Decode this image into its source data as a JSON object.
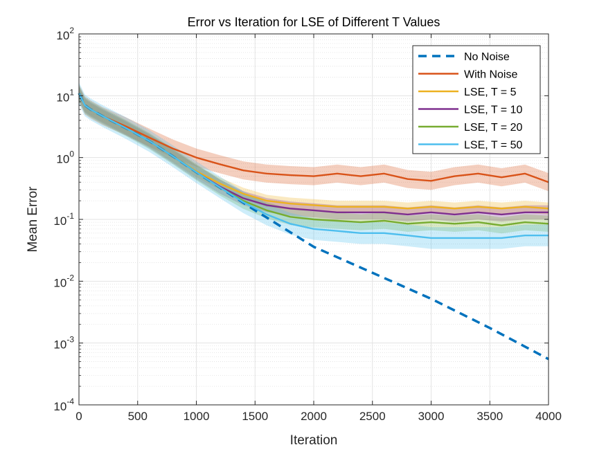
{
  "chart_data": {
    "type": "line",
    "title": "Error vs Iteration for LSE of Different T Values",
    "xlabel": "Iteration",
    "ylabel": "Mean Error",
    "xlim": [
      0,
      4000
    ],
    "ylim": [
      0.0001,
      100
    ],
    "yscale": "log",
    "grid": true,
    "minor_grid": true,
    "legend_position": "top-right",
    "x_ticks": [
      "0",
      "500",
      "1000",
      "1500",
      "2000",
      "2500",
      "3000",
      "3500",
      "4000"
    ],
    "y_ticks": [
      {
        "base": "10",
        "exp": "-4"
      },
      {
        "base": "10",
        "exp": "-3"
      },
      {
        "base": "10",
        "exp": "-2"
      },
      {
        "base": "10",
        "exp": "-1"
      },
      {
        "base": "10",
        "exp": "0"
      },
      {
        "base": "10",
        "exp": "1"
      },
      {
        "base": "10",
        "exp": "2"
      }
    ],
    "series": [
      {
        "name": "No Noise",
        "color": "#0072BD",
        "dashed": true,
        "x": [
          0,
          50,
          100,
          200,
          400,
          600,
          800,
          1000,
          1500,
          2000,
          2500,
          3000,
          3500,
          4000
        ],
        "y": [
          11,
          7.0,
          6.0,
          4.7,
          3.0,
          1.85,
          1.05,
          0.58,
          0.14,
          0.036,
          0.0137,
          0.0052,
          0.00175,
          0.00055
        ]
      },
      {
        "name": "With Noise",
        "color": "#D95319",
        "dashed": false,
        "x": [
          0,
          50,
          100,
          200,
          400,
          600,
          800,
          1000,
          1200,
          1400,
          1600,
          1800,
          2000,
          2200,
          2400,
          2600,
          2800,
          3000,
          3200,
          3400,
          3600,
          3800,
          4000
        ],
        "y": [
          11,
          7.0,
          6.0,
          4.7,
          3.2,
          2.1,
          1.4,
          1.0,
          0.78,
          0.62,
          0.55,
          0.52,
          0.5,
          0.55,
          0.5,
          0.55,
          0.45,
          0.42,
          0.5,
          0.55,
          0.48,
          0.55,
          0.4
        ],
        "band_factor": 1.4
      },
      {
        "name": "LSE, T = 5",
        "color": "#EDB120",
        "dashed": false,
        "x": [
          0,
          50,
          100,
          200,
          400,
          600,
          800,
          1000,
          1200,
          1400,
          1600,
          1800,
          2000,
          2200,
          2400,
          2600,
          2800,
          3000,
          3200,
          3400,
          3600,
          3800,
          4000
        ],
        "y": [
          11,
          7.0,
          6.0,
          4.7,
          3.0,
          1.85,
          1.05,
          0.6,
          0.38,
          0.26,
          0.2,
          0.18,
          0.17,
          0.16,
          0.16,
          0.16,
          0.15,
          0.16,
          0.15,
          0.16,
          0.15,
          0.16,
          0.15
        ],
        "band_factor": 1.25
      },
      {
        "name": "LSE, T = 10",
        "color": "#7E2F8E",
        "dashed": false,
        "x": [
          0,
          50,
          100,
          200,
          400,
          600,
          800,
          1000,
          1200,
          1400,
          1600,
          1800,
          2000,
          2200,
          2400,
          2600,
          2800,
          3000,
          3200,
          3400,
          3600,
          3800,
          4000
        ],
        "y": [
          11,
          7.0,
          6.0,
          4.7,
          3.0,
          1.85,
          1.05,
          0.58,
          0.34,
          0.22,
          0.17,
          0.15,
          0.14,
          0.13,
          0.13,
          0.13,
          0.12,
          0.13,
          0.12,
          0.13,
          0.12,
          0.13,
          0.13
        ],
        "band_factor": 1.3
      },
      {
        "name": "LSE, T = 20",
        "color": "#77AC30",
        "dashed": false,
        "x": [
          0,
          50,
          100,
          200,
          400,
          600,
          800,
          1000,
          1200,
          1400,
          1600,
          1800,
          2000,
          2200,
          2400,
          2600,
          2800,
          3000,
          3200,
          3400,
          3600,
          3800,
          4000
        ],
        "y": [
          11,
          7.0,
          6.0,
          4.7,
          3.0,
          1.85,
          1.05,
          0.58,
          0.33,
          0.2,
          0.14,
          0.11,
          0.1,
          0.095,
          0.09,
          0.095,
          0.085,
          0.09,
          0.085,
          0.09,
          0.08,
          0.09,
          0.085
        ],
        "band_factor": 1.35
      },
      {
        "name": "LSE, T = 50",
        "color": "#4DBEEE",
        "dashed": false,
        "x": [
          0,
          50,
          100,
          200,
          400,
          600,
          800,
          1000,
          1200,
          1400,
          1600,
          1800,
          2000,
          2200,
          2400,
          2600,
          2800,
          3000,
          3200,
          3400,
          3600,
          3800,
          4000
        ],
        "y": [
          11,
          7.0,
          6.0,
          4.7,
          3.0,
          1.85,
          1.05,
          0.58,
          0.33,
          0.19,
          0.12,
          0.085,
          0.07,
          0.065,
          0.06,
          0.06,
          0.055,
          0.05,
          0.05,
          0.05,
          0.05,
          0.055,
          0.055
        ],
        "band_factor": 1.5
      }
    ]
  }
}
